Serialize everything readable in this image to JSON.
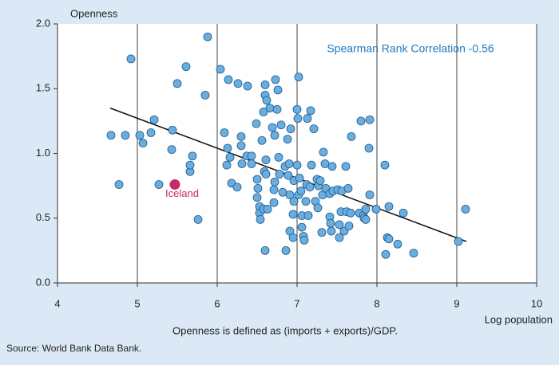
{
  "chart_data": {
    "type": "scatter",
    "y_label": "Openness",
    "x_label": "Log population",
    "annotation": "Spearman Rank Correlation -0.56",
    "caption": "Openness is defined as (imports + exports)/GDP.",
    "source": "Source: World Bank Data Bank.",
    "xlim": [
      4,
      10
    ],
    "ylim": [
      0,
      2
    ],
    "xticks": [
      4,
      5,
      6,
      7,
      8,
      9,
      10
    ],
    "yticks": [
      {
        "value": 0,
        "label": "0.0"
      },
      {
        "value": 0.5,
        "label": "0.5"
      },
      {
        "value": 1,
        "label": "1.0"
      },
      {
        "value": 1.5,
        "label": "1.5"
      },
      {
        "value": 2,
        "label": "2.0"
      }
    ],
    "grid": true,
    "series": [
      {
        "color": "#6aaee0",
        "x": [
          4.67,
          4.85,
          4.77,
          4.92,
          5.03,
          5.07,
          5.17,
          5.21,
          5.27,
          5.44,
          5.43,
          5.5,
          5.61,
          5.66,
          5.66,
          5.69,
          5.76,
          5.85,
          5.88,
          6.04,
          6.09,
          6.14,
          6.13,
          6.16,
          6.12,
          6.18,
          6.25,
          6.26,
          6.3,
          6.3,
          6.31,
          6.37,
          6.43,
          6.38,
          6.43,
          6.5,
          6.5,
          6.51,
          6.53,
          6.53,
          6.54,
          6.49,
          6.56,
          6.58,
          6.6,
          6.6,
          6.61,
          6.62,
          6.59,
          6.61,
          6.58,
          6.63,
          6.6,
          6.66,
          6.69,
          6.73,
          6.75,
          6.72,
          6.71,
          6.71,
          6.72,
          6.76,
          6.77,
          6.78,
          6.8,
          6.82,
          6.85,
          6.86,
          6.88,
          6.89,
          6.9,
          6.91,
          6.91,
          6.92,
          6.95,
          6.96,
          6.95,
          6.96,
          7.0,
          7.0,
          7.01,
          7.02,
          7.02,
          7.03,
          7.05,
          7.06,
          7.06,
          7.08,
          7.09,
          7.11,
          7.12,
          7.13,
          7.14,
          7.16,
          7.17,
          7.18,
          7.21,
          7.23,
          7.25,
          7.26,
          7.27,
          7.29,
          7.31,
          7.32,
          7.33,
          7.35,
          7.36,
          7.41,
          7.41,
          7.42,
          7.43,
          7.44,
          7.45,
          7.51,
          7.53,
          7.53,
          7.55,
          7.56,
          7.59,
          7.61,
          7.62,
          7.64,
          7.65,
          7.67,
          7.68,
          7.78,
          7.8,
          7.83,
          7.84,
          7.86,
          7.86,
          7.9,
          7.91,
          7.91,
          7.99,
          8.1,
          8.11,
          8.13,
          8.15,
          8.15,
          8.26,
          8.33,
          8.46,
          9.02,
          9.11
        ],
        "values": [
          1.14,
          1.14,
          0.76,
          1.73,
          1.14,
          1.08,
          1.16,
          1.26,
          0.76,
          1.18,
          1.03,
          1.54,
          1.67,
          0.86,
          0.91,
          0.98,
          0.49,
          1.45,
          1.9,
          1.65,
          1.16,
          1.57,
          1.04,
          0.97,
          0.91,
          0.77,
          0.74,
          1.54,
          1.13,
          1.06,
          0.92,
          0.98,
          0.98,
          1.52,
          0.92,
          0.8,
          0.66,
          0.73,
          0.59,
          0.54,
          0.49,
          1.23,
          1.1,
          1.32,
          1.53,
          1.45,
          0.95,
          1.41,
          0.86,
          0.84,
          0.57,
          0.57,
          0.25,
          1.35,
          1.2,
          1.57,
          1.34,
          0.78,
          0.72,
          0.62,
          1.14,
          1.49,
          0.97,
          0.84,
          1.22,
          0.7,
          0.9,
          0.25,
          1.11,
          0.83,
          0.92,
          0.68,
          0.4,
          1.19,
          0.35,
          0.63,
          0.53,
          0.79,
          0.91,
          1.34,
          1.27,
          1.59,
          0.68,
          0.81,
          0.71,
          0.43,
          0.52,
          0.36,
          0.33,
          0.63,
          0.76,
          1.27,
          0.52,
          0.74,
          1.33,
          0.91,
          1.19,
          0.63,
          0.8,
          0.58,
          0.75,
          0.79,
          0.39,
          0.68,
          1.01,
          0.92,
          0.73,
          0.69,
          0.51,
          0.46,
          0.4,
          0.9,
          0.71,
          0.72,
          0.35,
          0.45,
          0.55,
          0.71,
          0.4,
          0.9,
          0.55,
          0.73,
          0.44,
          0.54,
          1.13,
          0.54,
          1.25,
          0.52,
          0.5,
          0.49,
          0.57,
          1.04,
          1.26,
          0.68,
          0.57,
          0.91,
          0.22,
          0.35,
          0.34,
          0.59,
          0.3,
          0.54,
          0.23,
          0.32,
          0.57
        ]
      },
      {
        "name": "Iceland",
        "color": "#c8296b",
        "x": [
          5.47
        ],
        "values": [
          0.76
        ]
      }
    ],
    "trendline": {
      "color": "#111111",
      "x": [
        4.66,
        9.12
      ],
      "values": [
        1.35,
        0.32
      ]
    }
  }
}
